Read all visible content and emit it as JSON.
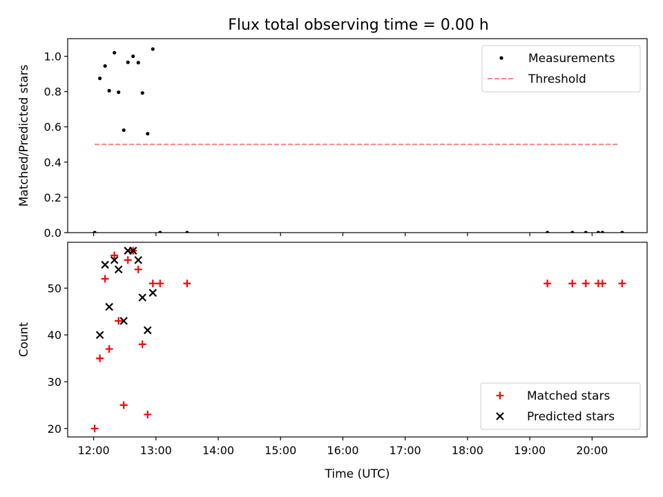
{
  "figure": {
    "title": "Flux total observing time = 0.00 h"
  },
  "chart_data": [
    {
      "type": "scatter",
      "title": "Flux total observing time = 0.00 h",
      "xlabel": "",
      "ylabel": "Matched/Predicted stars",
      "xlim": [
        "11:35",
        "20:53"
      ],
      "ylim": [
        0,
        1.1
      ],
      "yticks": [
        0.0,
        0.2,
        0.4,
        0.6,
        0.8,
        1.0
      ],
      "ytick_labels": [
        "0.0",
        "0.2",
        "0.4",
        "0.6",
        "0.8",
        "1.0"
      ],
      "legend_position": "top-right",
      "series": [
        {
          "name": "Measurements",
          "kind": "dots",
          "color": "#000000",
          "points": [
            {
              "x": "12:01",
              "y": 0.0
            },
            {
              "x": "12:06",
              "y": 0.875
            },
            {
              "x": "12:11",
              "y": 0.945
            },
            {
              "x": "12:15",
              "y": 0.805
            },
            {
              "x": "12:20",
              "y": 1.02
            },
            {
              "x": "12:24",
              "y": 0.796
            },
            {
              "x": "12:29",
              "y": 0.581
            },
            {
              "x": "12:33",
              "y": 0.966
            },
            {
              "x": "12:38",
              "y": 1.0
            },
            {
              "x": "12:43",
              "y": 0.964
            },
            {
              "x": "12:47",
              "y": 0.792
            },
            {
              "x": "12:52",
              "y": 0.561
            },
            {
              "x": "12:57",
              "y": 1.041
            },
            {
              "x": "13:04",
              "y": 0.0
            },
            {
              "x": "13:30",
              "y": 0.0
            },
            {
              "x": "19:17",
              "y": 0.0
            },
            {
              "x": "19:41",
              "y": 0.0
            },
            {
              "x": "19:54",
              "y": 0.0
            },
            {
              "x": "20:06",
              "y": 0.0
            },
            {
              "x": "20:10",
              "y": 0.0
            },
            {
              "x": "20:29",
              "y": 0.0
            }
          ]
        },
        {
          "name": "Threshold",
          "kind": "dashed-line",
          "color": "#ff7f7f",
          "points": [
            {
              "x": "12:01",
              "y": 0.5
            },
            {
              "x": "20:25",
              "y": 0.5
            }
          ]
        }
      ]
    },
    {
      "type": "scatter",
      "title": "",
      "xlabel": "Time (UTC)",
      "ylabel": "Count",
      "xlim": [
        "11:35",
        "20:53"
      ],
      "ylim": [
        18.2,
        59.8
      ],
      "xticks": [
        "12:00",
        "13:00",
        "14:00",
        "15:00",
        "16:00",
        "17:00",
        "18:00",
        "19:00",
        "20:00"
      ],
      "yticks": [
        20,
        30,
        40,
        50
      ],
      "legend_position": "bottom-right",
      "series": [
        {
          "name": "Matched stars",
          "kind": "plus",
          "color": "#ff0000",
          "points": [
            {
              "x": "12:01",
              "y": 20
            },
            {
              "x": "12:06",
              "y": 35
            },
            {
              "x": "12:11",
              "y": 52
            },
            {
              "x": "12:15",
              "y": 37
            },
            {
              "x": "12:20",
              "y": 57
            },
            {
              "x": "12:24",
              "y": 43
            },
            {
              "x": "12:29",
              "y": 25
            },
            {
              "x": "12:33",
              "y": 56
            },
            {
              "x": "12:38",
              "y": 58
            },
            {
              "x": "12:43",
              "y": 54
            },
            {
              "x": "12:47",
              "y": 38
            },
            {
              "x": "12:52",
              "y": 23
            },
            {
              "x": "12:57",
              "y": 51
            },
            {
              "x": "13:04",
              "y": 51
            },
            {
              "x": "13:30",
              "y": 51
            },
            {
              "x": "19:17",
              "y": 51
            },
            {
              "x": "19:41",
              "y": 51
            },
            {
              "x": "19:54",
              "y": 51
            },
            {
              "x": "20:06",
              "y": 51
            },
            {
              "x": "20:10",
              "y": 51
            },
            {
              "x": "20:29",
              "y": 51
            }
          ]
        },
        {
          "name": "Predicted stars",
          "kind": "cross",
          "color": "#000000",
          "points": [
            {
              "x": "12:06",
              "y": 40
            },
            {
              "x": "12:11",
              "y": 55
            },
            {
              "x": "12:15",
              "y": 46
            },
            {
              "x": "12:20",
              "y": 56
            },
            {
              "x": "12:24",
              "y": 54
            },
            {
              "x": "12:29",
              "y": 43
            },
            {
              "x": "12:33",
              "y": 58
            },
            {
              "x": "12:38",
              "y": 58
            },
            {
              "x": "12:43",
              "y": 56
            },
            {
              "x": "12:47",
              "y": 48
            },
            {
              "x": "12:52",
              "y": 41
            },
            {
              "x": "12:57",
              "y": 49
            }
          ]
        }
      ]
    }
  ]
}
